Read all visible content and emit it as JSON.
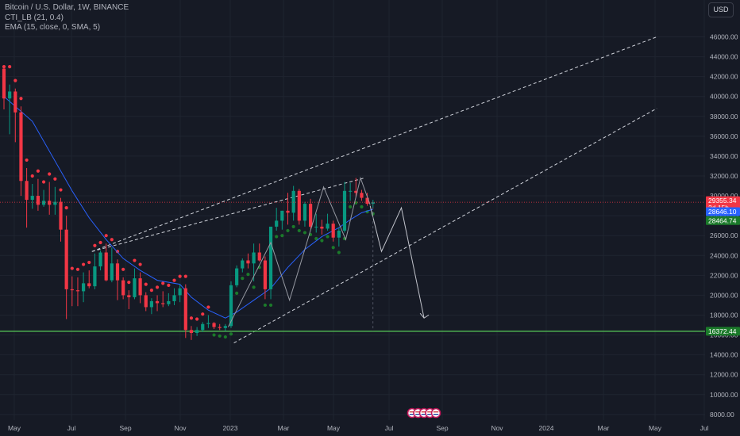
{
  "legend": {
    "symbol": "Bitcoin / U.S. Dollar, 1W, BINANCE",
    "indicator1": "CTI_LB (21, 0.4)",
    "indicator2": "EMA (15, close, 0, SMA, 5)"
  },
  "currency_button": "USD",
  "colors": {
    "background": "#161a25",
    "up": "#089981",
    "down": "#f23645",
    "ema": "#2962ff",
    "dots_red": "#f23645",
    "dots_green": "#1b7a2a",
    "support": "#4caf50",
    "price_label_red": "#f23645",
    "price_label_green": "#1b7a2a",
    "price_label_blue": "#2962ff"
  },
  "chart_data": {
    "type": "candlestick",
    "title": "Bitcoin / U.S. Dollar, 1W, BINANCE",
    "ylim": [
      7400,
      48000
    ],
    "y_ticks": [
      "46000.00",
      "44000.00",
      "42000.00",
      "40000.00",
      "38000.00",
      "36000.00",
      "34000.00",
      "32000.00",
      "30000.00",
      "28000.00",
      "26000.00",
      "24000.00",
      "22000.00",
      "20000.00",
      "18000.00",
      "16000.00",
      "14000.00",
      "12000.00",
      "10000.00",
      "8000.00"
    ],
    "x_ticks": [
      "May",
      "Jul",
      "Sep",
      "Nov",
      "2023",
      "Mar",
      "May",
      "Jul",
      "Sep",
      "Nov",
      "2024",
      "Mar",
      "May",
      "Jul"
    ],
    "price_labels": [
      {
        "text": "29355.34",
        "sub": "2d 15h",
        "color": "red"
      },
      {
        "text": "28646.10",
        "color": "blue"
      },
      {
        "text": "28464.74",
        "color": "green"
      },
      {
        "text": "16372.44",
        "color": "green"
      }
    ],
    "support_level": 16372.44,
    "current_price": 29355.34,
    "candles": [
      {
        "o": 42800,
        "h": 43000,
        "l": 38700,
        "c": 39800
      },
      {
        "o": 39800,
        "h": 41200,
        "l": 36200,
        "c": 40500
      },
      {
        "o": 40500,
        "h": 40800,
        "l": 35400,
        "c": 38400
      },
      {
        "o": 38400,
        "h": 39000,
        "l": 30000,
        "c": 31500
      },
      {
        "o": 31500,
        "h": 32800,
        "l": 26800,
        "c": 29600
      },
      {
        "o": 29600,
        "h": 31200,
        "l": 28700,
        "c": 30000
      },
      {
        "o": 30000,
        "h": 31700,
        "l": 28500,
        "c": 29100
      },
      {
        "o": 29100,
        "h": 30600,
        "l": 28900,
        "c": 29500
      },
      {
        "o": 29500,
        "h": 31400,
        "l": 28100,
        "c": 29100
      },
      {
        "o": 29100,
        "h": 30900,
        "l": 28100,
        "c": 29400
      },
      {
        "o": 29400,
        "h": 29800,
        "l": 25400,
        "c": 26600
      },
      {
        "o": 26600,
        "h": 28000,
        "l": 17600,
        "c": 20600
      },
      {
        "o": 20600,
        "h": 21900,
        "l": 18900,
        "c": 20500
      },
      {
        "o": 20500,
        "h": 21800,
        "l": 18900,
        "c": 20400
      },
      {
        "o": 20400,
        "h": 22300,
        "l": 19300,
        "c": 21200
      },
      {
        "o": 21200,
        "h": 22500,
        "l": 20700,
        "c": 20900
      },
      {
        "o": 20900,
        "h": 24200,
        "l": 20600,
        "c": 22900
      },
      {
        "o": 22900,
        "h": 24500,
        "l": 22500,
        "c": 24300
      },
      {
        "o": 24300,
        "h": 25200,
        "l": 21400,
        "c": 21500
      },
      {
        "o": 21500,
        "h": 24800,
        "l": 21300,
        "c": 23200
      },
      {
        "o": 23200,
        "h": 23600,
        "l": 19500,
        "c": 21500
      },
      {
        "o": 21500,
        "h": 21800,
        "l": 19600,
        "c": 20000
      },
      {
        "o": 20000,
        "h": 20500,
        "l": 18600,
        "c": 19800
      },
      {
        "o": 19800,
        "h": 22700,
        "l": 19600,
        "c": 21700
      },
      {
        "o": 21700,
        "h": 22300,
        "l": 19200,
        "c": 20000
      },
      {
        "o": 20000,
        "h": 20300,
        "l": 18400,
        "c": 18800
      },
      {
        "o": 18800,
        "h": 19700,
        "l": 18100,
        "c": 19400
      },
      {
        "o": 19400,
        "h": 20000,
        "l": 18400,
        "c": 19200
      },
      {
        "o": 19200,
        "h": 20400,
        "l": 18800,
        "c": 19100
      },
      {
        "o": 19100,
        "h": 20200,
        "l": 18900,
        "c": 19400
      },
      {
        "o": 19400,
        "h": 20700,
        "l": 19000,
        "c": 20000
      },
      {
        "o": 20000,
        "h": 21100,
        "l": 19300,
        "c": 20700
      },
      {
        "o": 20700,
        "h": 21100,
        "l": 15700,
        "c": 16500
      },
      {
        "o": 16500,
        "h": 16900,
        "l": 15500,
        "c": 16200
      },
      {
        "o": 16200,
        "h": 16800,
        "l": 15900,
        "c": 16500
      },
      {
        "o": 16500,
        "h": 17300,
        "l": 16300,
        "c": 17100
      },
      {
        "o": 17100,
        "h": 18000,
        "l": 16700,
        "c": 17200
      },
      {
        "o": 17200,
        "h": 17300,
        "l": 16600,
        "c": 16800
      },
      {
        "o": 16800,
        "h": 17100,
        "l": 16500,
        "c": 16700
      },
      {
        "o": 16700,
        "h": 17100,
        "l": 16400,
        "c": 16900
      },
      {
        "o": 16900,
        "h": 21400,
        "l": 16700,
        "c": 21000
      },
      {
        "o": 21000,
        "h": 23000,
        "l": 20800,
        "c": 22700
      },
      {
        "o": 22700,
        "h": 23700,
        "l": 22300,
        "c": 23500
      },
      {
        "o": 23500,
        "h": 24200,
        "l": 22700,
        "c": 23200
      },
      {
        "o": 23200,
        "h": 25200,
        "l": 21400,
        "c": 24300
      },
      {
        "o": 24300,
        "h": 25200,
        "l": 23400,
        "c": 23500
      },
      {
        "o": 23500,
        "h": 23900,
        "l": 19600,
        "c": 20600
      },
      {
        "o": 20600,
        "h": 26500,
        "l": 19600,
        "c": 26900
      },
      {
        "o": 26900,
        "h": 28800,
        "l": 26500,
        "c": 27500
      },
      {
        "o": 27500,
        "h": 28500,
        "l": 26600,
        "c": 28500
      },
      {
        "o": 28500,
        "h": 30300,
        "l": 27100,
        "c": 28300
      },
      {
        "o": 28300,
        "h": 31000,
        "l": 27500,
        "c": 30500
      },
      {
        "o": 30500,
        "h": 30700,
        "l": 27100,
        "c": 27500
      },
      {
        "o": 27500,
        "h": 29400,
        "l": 26900,
        "c": 29200
      },
      {
        "o": 29200,
        "h": 29700,
        "l": 26700,
        "c": 26900
      },
      {
        "o": 26900,
        "h": 28200,
        "l": 26300,
        "c": 26900
      },
      {
        "o": 26900,
        "h": 27600,
        "l": 26100,
        "c": 26700
      },
      {
        "o": 26700,
        "h": 28200,
        "l": 26500,
        "c": 27200
      },
      {
        "o": 27200,
        "h": 27500,
        "l": 25400,
        "c": 25800
      },
      {
        "o": 25800,
        "h": 26800,
        "l": 24900,
        "c": 26500
      },
      {
        "o": 26500,
        "h": 31400,
        "l": 26300,
        "c": 30500
      },
      {
        "o": 30500,
        "h": 31300,
        "l": 29500,
        "c": 30500
      },
      {
        "o": 30500,
        "h": 31800,
        "l": 29900,
        "c": 30300
      },
      {
        "o": 30300,
        "h": 30600,
        "l": 29500,
        "c": 29800
      },
      {
        "o": 29800,
        "h": 30300,
        "l": 29000,
        "c": 29200
      },
      {
        "o": 29200,
        "h": 29600,
        "l": 28800,
        "c": 29350
      }
    ],
    "ema": [
      [
        0,
        40000
      ],
      [
        5,
        37500
      ],
      [
        9,
        33500
      ],
      [
        12,
        30500
      ],
      [
        15,
        27800
      ],
      [
        18,
        25600
      ],
      [
        21,
        23700
      ],
      [
        24,
        22500
      ],
      [
        27,
        21500
      ],
      [
        31,
        21100
      ],
      [
        33,
        19800
      ],
      [
        36,
        18500
      ],
      [
        39,
        17700
      ],
      [
        41,
        18300
      ],
      [
        44,
        19500
      ],
      [
        47,
        20700
      ],
      [
        50,
        22800
      ],
      [
        53,
        24600
      ],
      [
        56,
        25900
      ],
      [
        59,
        26800
      ],
      [
        61,
        27600
      ],
      [
        63,
        28300
      ],
      [
        65,
        28646
      ]
    ],
    "dots_red": [
      [
        0,
        43000
      ],
      [
        36,
        17800
      ]
    ],
    "dots_green": [
      [
        37,
        17500
      ],
      [
        65,
        28465
      ]
    ],
    "trendlines": [
      {
        "from": [
          15.5,
          24400
        ],
        "to": [
          115,
          46000
        ],
        "style": "dashed"
      },
      {
        "from": [
          40.5,
          15200
        ],
        "to": [
          115,
          38800
        ],
        "style": "dashed"
      },
      {
        "from": [
          15.5,
          24400
        ],
        "to": [
          63.5,
          31800
        ],
        "style": "dashed"
      }
    ],
    "projection": [
      [
        64.5,
        29000
      ],
      [
        66.5,
        24400
      ],
      [
        70,
        28800
      ],
      [
        74,
        17700
      ]
    ]
  }
}
